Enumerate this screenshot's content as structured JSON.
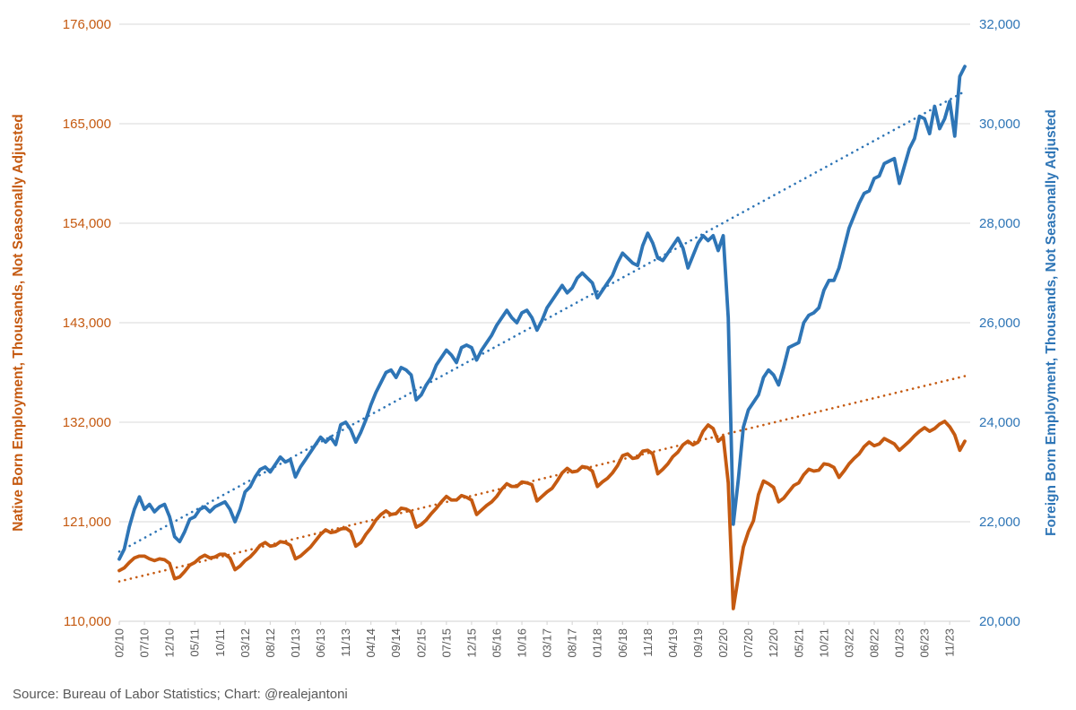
{
  "source_credit": "Source: Bureau of Labor Statistics; Chart: @realejantoni",
  "colors": {
    "native_orange": "#C55A11",
    "foreign_blue": "#2E75B6",
    "gridline": "#D9D9D9",
    "tick_text": "#595959",
    "background": "#FFFFFF"
  },
  "chart_data": {
    "type": "line",
    "title": "",
    "left_axis": {
      "label": "Native Born Employment, Thousands, Not Seasonally Adjusted",
      "min": 110000,
      "max": 176000,
      "tick_labels": [
        "110,000",
        "121,000",
        "132,000",
        "143,000",
        "154,000",
        "165,000",
        "176,000"
      ],
      "tick_values": [
        110000,
        121000,
        132000,
        143000,
        154000,
        165000,
        176000
      ]
    },
    "right_axis": {
      "label": "Foreign Born Employment, Thousands, Not Seasonally Adjusted",
      "min": 20000,
      "max": 32000,
      "tick_labels": [
        "20,000",
        "22,000",
        "24,000",
        "26,000",
        "28,000",
        "30,000",
        "32,000"
      ],
      "tick_values": [
        20000,
        22000,
        24000,
        26000,
        28000,
        30000,
        32000
      ]
    },
    "x_axis": {
      "start_label": "02/10",
      "label_every_n_months": 5,
      "tick_labels": [
        "02/10",
        "07/10",
        "12/10",
        "05/11",
        "10/11",
        "03/12",
        "08/12",
        "01/13",
        "06/13",
        "11/13",
        "04/14",
        "09/14",
        "02/15",
        "07/15",
        "12/15",
        "05/16",
        "10/16",
        "03/17",
        "08/17",
        "01/18",
        "06/18",
        "11/18",
        "04/19",
        "09/19",
        "02/20",
        "07/20",
        "12/20",
        "05/21",
        "10/21",
        "03/22",
        "08/22",
        "01/23",
        "06/23",
        "11/23"
      ],
      "n_points": 169
    },
    "grid": true,
    "legend": "none",
    "series": [
      {
        "name": "Native Born Employment",
        "axis": "left",
        "color": "#C55A11",
        "values": [
          115600,
          115900,
          116500,
          117000,
          117200,
          117200,
          116900,
          116700,
          116900,
          116800,
          116400,
          114700,
          114900,
          115500,
          116200,
          116500,
          117000,
          117300,
          117000,
          117100,
          117400,
          117400,
          117000,
          115700,
          116100,
          116700,
          117100,
          117700,
          118400,
          118700,
          118300,
          118400,
          118800,
          118700,
          118400,
          116900,
          117200,
          117700,
          118200,
          118900,
          119600,
          120100,
          119800,
          119900,
          120200,
          120300,
          119900,
          118300,
          118700,
          119600,
          120300,
          121200,
          121800,
          122200,
          121800,
          121900,
          122500,
          122400,
          122100,
          120400,
          120700,
          121200,
          121900,
          122500,
          123200,
          123800,
          123400,
          123400,
          123900,
          123700,
          123400,
          121800,
          122300,
          122800,
          123200,
          123800,
          124600,
          125200,
          124900,
          124900,
          125400,
          125300,
          125100,
          123300,
          123800,
          124300,
          124700,
          125500,
          126400,
          126900,
          126500,
          126600,
          127100,
          127000,
          126600,
          124900,
          125400,
          125800,
          126400,
          127200,
          128300,
          128500,
          128000,
          128100,
          128800,
          128900,
          128500,
          126300,
          126800,
          127400,
          128200,
          128700,
          129500,
          129900,
          129500,
          129800,
          131000,
          131700,
          131300,
          129900,
          130400,
          125300,
          111400,
          114900,
          118200,
          119900,
          121100,
          124000,
          125500,
          125200,
          124800,
          123200,
          123600,
          124300,
          125000,
          125300,
          126200,
          126800,
          126600,
          126700,
          127400,
          127300,
          127000,
          125900,
          126600,
          127400,
          128000,
          128500,
          129300,
          129800,
          129400,
          129600,
          130200,
          129900,
          129600,
          128900,
          129400,
          129900,
          130500,
          131000,
          131400,
          131000,
          131300,
          131800,
          132100,
          131500,
          130600,
          128900,
          129900
        ]
      },
      {
        "name": "Foreign Born Employment",
        "axis": "right",
        "color": "#2E75B6",
        "values": [
          21250,
          21450,
          21900,
          22250,
          22500,
          22250,
          22350,
          22200,
          22300,
          22350,
          22100,
          21700,
          21600,
          21800,
          22050,
          22100,
          22250,
          22300,
          22200,
          22300,
          22350,
          22400,
          22250,
          22000,
          22250,
          22600,
          22700,
          22900,
          23050,
          23100,
          23000,
          23150,
          23300,
          23200,
          23250,
          22900,
          23100,
          23250,
          23400,
          23550,
          23700,
          23600,
          23700,
          23550,
          23950,
          24000,
          23850,
          23600,
          23800,
          24050,
          24350,
          24600,
          24800,
          25000,
          25050,
          24900,
          25100,
          25050,
          24950,
          24450,
          24550,
          24750,
          24900,
          25150,
          25300,
          25450,
          25350,
          25200,
          25500,
          25550,
          25500,
          25250,
          25450,
          25600,
          25750,
          25950,
          26100,
          26250,
          26100,
          26000,
          26200,
          26250,
          26100,
          25850,
          26050,
          26300,
          26450,
          26600,
          26750,
          26600,
          26700,
          26900,
          27000,
          26900,
          26800,
          26500,
          26650,
          26800,
          26950,
          27200,
          27400,
          27300,
          27200,
          27150,
          27550,
          27800,
          27600,
          27300,
          27250,
          27400,
          27550,
          27700,
          27500,
          27100,
          27350,
          27600,
          27750,
          27650,
          27750,
          27450,
          27750,
          26100,
          21950,
          22850,
          23900,
          24250,
          24400,
          24550,
          24900,
          25050,
          24950,
          24750,
          25100,
          25500,
          25550,
          25600,
          26000,
          26150,
          26200,
          26300,
          26650,
          26850,
          26850,
          27100,
          27500,
          27900,
          28150,
          28400,
          28600,
          28650,
          28900,
          28950,
          29200,
          29250,
          29300,
          28800,
          29150,
          29500,
          29700,
          30150,
          30100,
          29800,
          30350,
          29900,
          30100,
          30450,
          29750,
          30950,
          31150
        ]
      }
    ],
    "trendlines": [
      {
        "name": "Native Born linear trend",
        "axis": "left",
        "color": "#C55A11",
        "style": "dotted",
        "start_value": 114400,
        "end_value": 137100
      },
      {
        "name": "Foreign Born linear trend",
        "axis": "right",
        "color": "#2E75B6",
        "style": "dotted",
        "start_value": 21400,
        "end_value": 30650
      }
    ]
  }
}
